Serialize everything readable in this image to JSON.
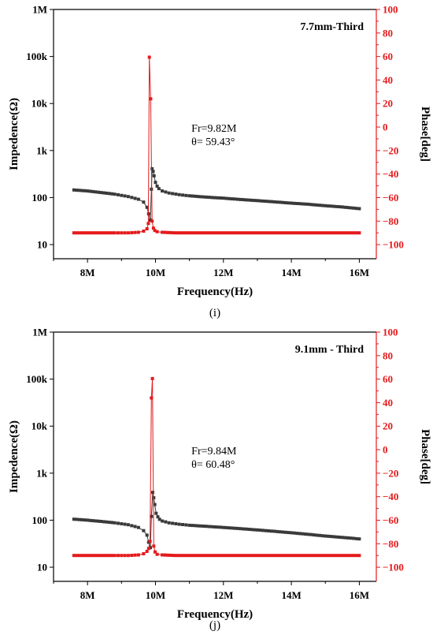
{
  "chart_data": [
    {
      "type": "line",
      "title": "7.7mm-Third",
      "caption": "(i)",
      "xlabel": "Frequency(Hz)",
      "ylabel_left": "Impedence(Ω)",
      "ylabel_right": "Phase[deg]",
      "xlim": [
        7.0,
        16.5
      ],
      "xticks": [
        8,
        10,
        12,
        14,
        16
      ],
      "xtick_labels": [
        "8M",
        "10M",
        "12M",
        "14M",
        "16M"
      ],
      "left_scale": "log",
      "left_ylim": [
        5,
        1000000
      ],
      "left_ticks": [
        10,
        100,
        1000,
        10000,
        100000,
        1000000
      ],
      "left_tick_labels": [
        "10",
        "100",
        "1k",
        "10k",
        "100k",
        "1M"
      ],
      "right_ylim": [
        -112,
        100
      ],
      "right_ticks": [
        -100,
        -80,
        -60,
        -40,
        -20,
        0,
        20,
        40,
        60,
        80,
        100
      ],
      "right_tick_labels": [
        "−100",
        "−80",
        "−60",
        "−40",
        "−20",
        "0",
        "20",
        "40",
        "60",
        "80",
        "100"
      ],
      "annotation": [
        "Fr=9.82M",
        "θ= 59.43°"
      ],
      "series": [
        {
          "color": "#3a3a3a",
          "axis": "left",
          "x": [
            7.6,
            8.0,
            8.4,
            8.8,
            9.2,
            9.5,
            9.65,
            9.75,
            9.8,
            9.85,
            9.88,
            9.9,
            9.93,
            9.96,
            10.0,
            10.05,
            10.1,
            10.2,
            10.4,
            10.7,
            11.0,
            11.5,
            12.0,
            12.5,
            13.0,
            13.5,
            14.0,
            14.5,
            15.0,
            15.5,
            16.0
          ],
          "y": [
            145,
            138,
            128,
            118,
            105,
            92,
            80,
            62,
            45,
            33,
            150,
            410,
            360,
            290,
            210,
            175,
            155,
            138,
            125,
            115,
            109,
            102,
            97,
            91,
            86,
            81,
            76,
            72,
            67,
            63,
            58
          ]
        },
        {
          "color": "#e41a1c",
          "axis": "right",
          "x": [
            7.6,
            8.0,
            8.4,
            8.8,
            9.2,
            9.5,
            9.65,
            9.75,
            9.79,
            9.82,
            9.86,
            9.9,
            9.94,
            9.98,
            10.05,
            10.2,
            10.6,
            11.0,
            12.0,
            13.0,
            14.0,
            15.0,
            16.0
          ],
          "y": [
            -90,
            -90,
            -90,
            -90,
            -90,
            -89.5,
            -88.5,
            -86.5,
            -82,
            59.43,
            24,
            -80,
            -86,
            -88,
            -89,
            -89.5,
            -90,
            -90,
            -90,
            -90,
            -90,
            -90,
            -90
          ]
        }
      ]
    },
    {
      "type": "line",
      "title": "9.1mm - Third",
      "caption": "(j)",
      "xlabel": "Frequency(Hz)",
      "ylabel_left": "Impedence(Ω)",
      "ylabel_right": "Phase[deg]",
      "xlim": [
        7.0,
        16.5
      ],
      "xticks": [
        8,
        10,
        12,
        14,
        16
      ],
      "xtick_labels": [
        "8M",
        "10M",
        "12M",
        "14M",
        "16M"
      ],
      "left_scale": "log",
      "left_ylim": [
        5,
        1000000
      ],
      "left_ticks": [
        10,
        100,
        1000,
        10000,
        100000,
        1000000
      ],
      "left_tick_labels": [
        "10",
        "100",
        "1k",
        "10k",
        "100k",
        "1M"
      ],
      "right_ylim": [
        -112,
        100
      ],
      "right_ticks": [
        -100,
        -80,
        -60,
        -40,
        -20,
        0,
        20,
        40,
        60,
        80,
        100
      ],
      "right_tick_labels": [
        "−100",
        "−80",
        "−60",
        "−40",
        "−20",
        "0",
        "20",
        "40",
        "60",
        "80",
        "100"
      ],
      "annotation": [
        "Fr=9.84M",
        "θ= 60.48°"
      ],
      "series": [
        {
          "color": "#3a3a3a",
          "axis": "left",
          "x": [
            7.6,
            8.0,
            8.4,
            8.8,
            9.2,
            9.5,
            9.65,
            9.75,
            9.8,
            9.85,
            9.88,
            9.92,
            9.95,
            9.98,
            10.02,
            10.07,
            10.12,
            10.2,
            10.4,
            10.7,
            11.0,
            11.5,
            12.0,
            12.5,
            13.0,
            13.5,
            14.0,
            14.5,
            15.0,
            15.5,
            16.0
          ],
          "y": [
            105,
            100,
            94,
            88,
            80,
            70,
            60,
            48,
            34,
            26,
            120,
            390,
            300,
            215,
            140,
            118,
            104,
            96,
            88,
            82,
            78,
            74,
            70,
            66,
            62,
            58,
            54,
            50,
            46,
            43,
            40
          ]
        },
        {
          "color": "#e41a1c",
          "axis": "right",
          "x": [
            7.6,
            8.0,
            8.4,
            8.8,
            9.2,
            9.5,
            9.65,
            9.75,
            9.8,
            9.84,
            9.88,
            9.91,
            9.95,
            9.99,
            10.05,
            10.2,
            10.6,
            11.0,
            12.0,
            13.0,
            14.0,
            15.0,
            16.0
          ],
          "y": [
            -90,
            -90,
            -90,
            -90,
            -90,
            -89.5,
            -88.5,
            -86.5,
            -84,
            -78,
            44,
            60.48,
            -82,
            -87,
            -89,
            -89.5,
            -90,
            -90,
            -90,
            -90,
            -90,
            -90,
            -90
          ]
        }
      ]
    }
  ]
}
